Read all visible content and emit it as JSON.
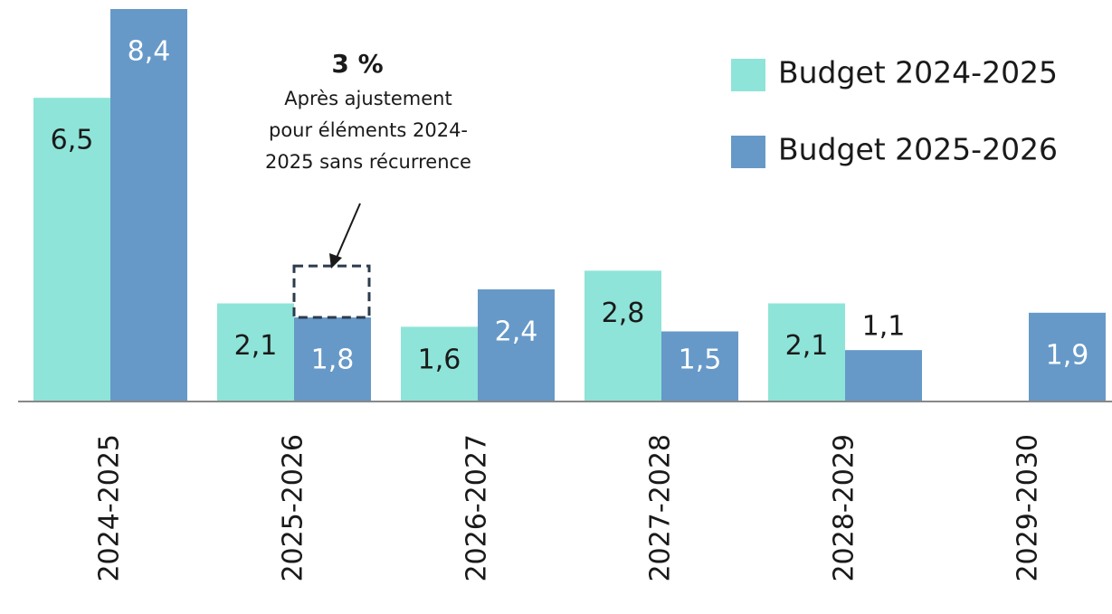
{
  "chart_data": {
    "type": "bar",
    "categories": [
      "2024-2025",
      "2025-2026",
      "2026-2027",
      "2027-2028",
      "2028-2029",
      "2029-2030"
    ],
    "series": [
      {
        "name": "Budget 2024-2025",
        "color": "#8ee4d8",
        "values": [
          6.5,
          2.1,
          1.6,
          2.8,
          2.1,
          null
        ],
        "value_labels": [
          "6,5",
          "2,1",
          "1,6",
          "2,8",
          "2,1",
          null
        ]
      },
      {
        "name": "Budget 2025-2026",
        "color": "#6699c8",
        "values": [
          8.4,
          1.8,
          2.4,
          1.5,
          1.1,
          1.9
        ],
        "value_labels": [
          "8,4",
          "1,8",
          "2,4",
          "1,5",
          "1,1",
          "1,9"
        ]
      }
    ],
    "ylim": [
      0,
      8.4
    ],
    "legend": "top-right",
    "annotation": {
      "title": "3 %",
      "lines": [
        "Après ajustement",
        "pour éléments 2024-",
        "2025 sans récurrence"
      ],
      "category": 1,
      "series": 1,
      "adjusted_value": 2.9
    }
  }
}
